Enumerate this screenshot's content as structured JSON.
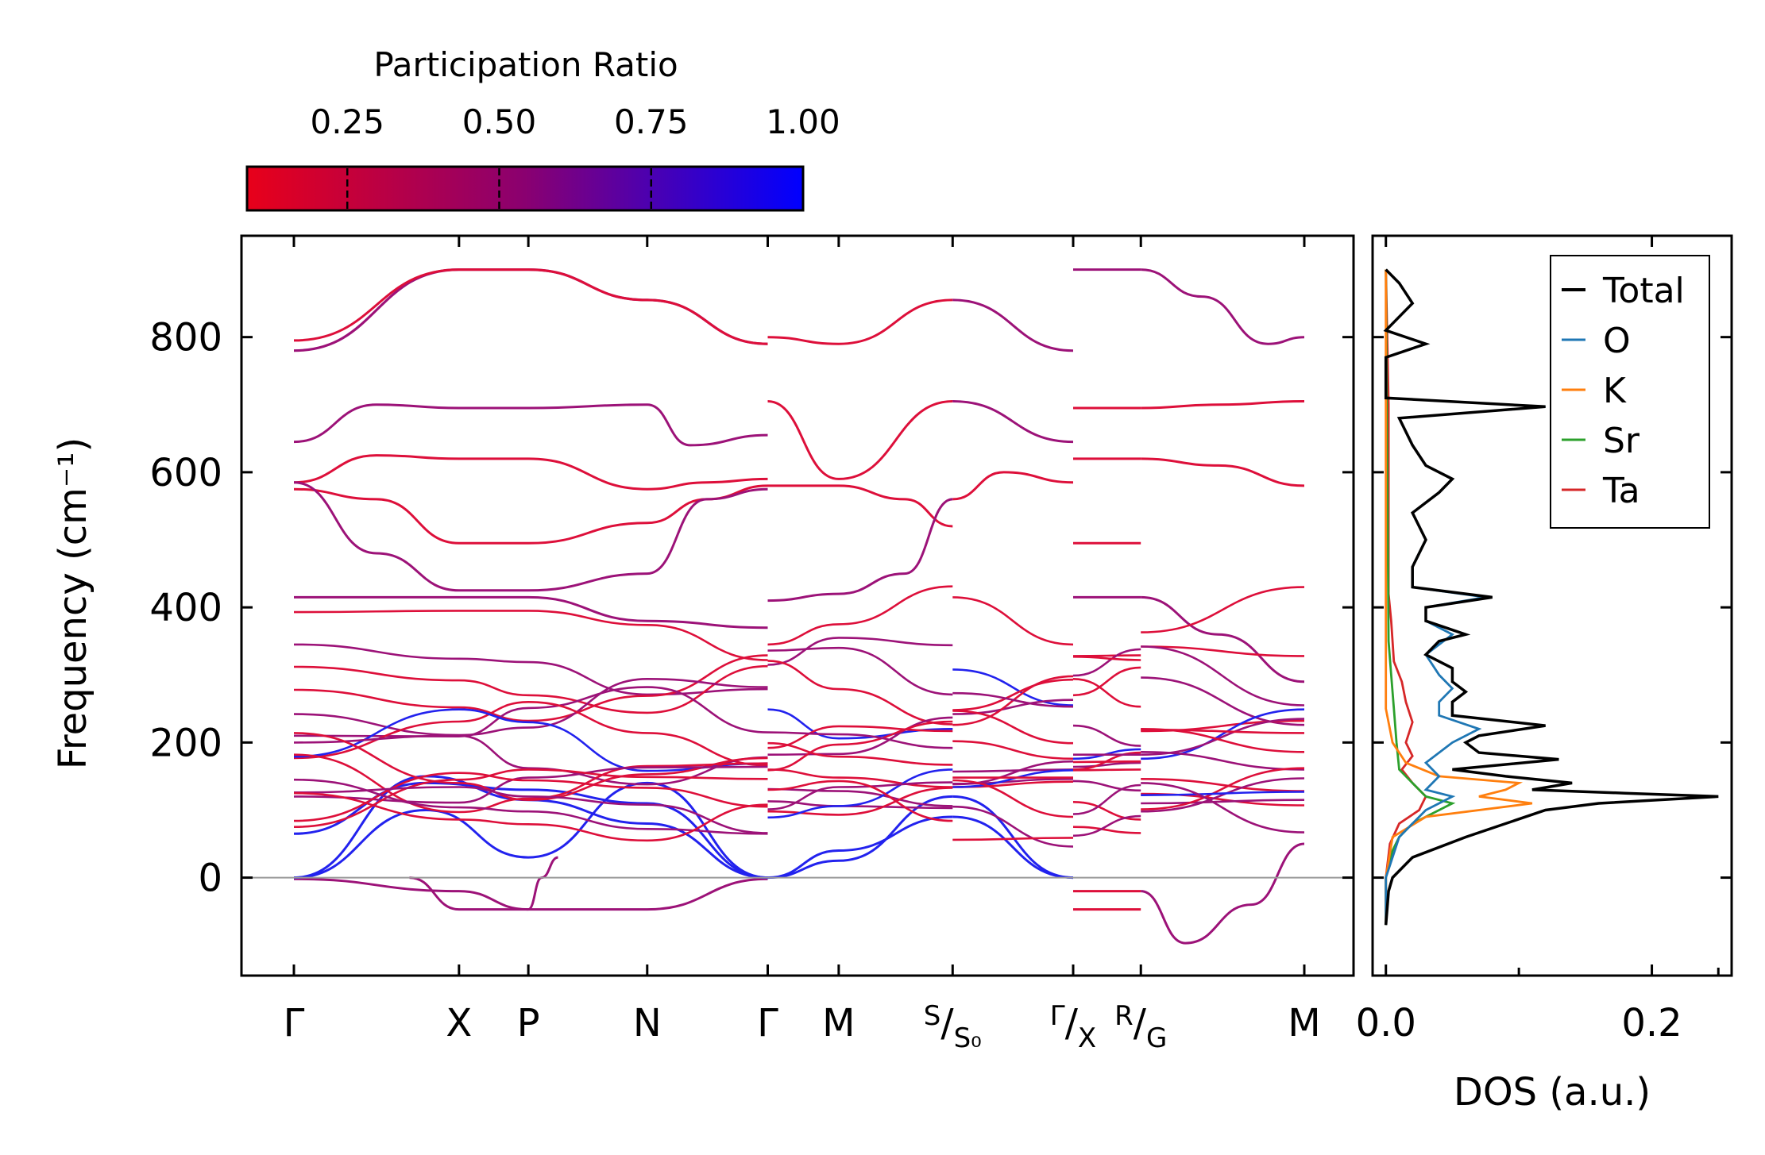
{
  "chart_data": [
    {
      "type": "line",
      "title": "",
      "ylabel": "Frequency (cm⁻¹)",
      "xlabel": "",
      "ylim": [
        -145,
        950
      ],
      "yticks": [
        0,
        200,
        400,
        600,
        800
      ],
      "x_ticks": [
        {
          "label": "Γ",
          "k": 0.0
        },
        {
          "label": "X",
          "k": 1.0
        },
        {
          "label": "P",
          "k": 1.42
        },
        {
          "label": "N",
          "k": 2.14
        },
        {
          "label": "Γ",
          "k": 2.87
        },
        {
          "label": "M",
          "k": 3.3
        },
        {
          "label": "S/S₀",
          "k": 3.99
        },
        {
          "label": "Γ/X",
          "k": 4.72
        },
        {
          "label": "R/G",
          "k": 5.13
        },
        {
          "label": "M",
          "k": 6.12
        }
      ],
      "segments": [
        {
          "path": "Γ-X-P-N-Γ",
          "k_range": [
            0.0,
            2.87
          ]
        },
        {
          "path": "Γ-M-S",
          "k_range": [
            2.87,
            3.99
          ]
        },
        {
          "path": "S₀-Γ",
          "k_range": [
            3.99,
            4.72
          ]
        },
        {
          "path": "X-R",
          "k_range": [
            4.72,
            5.13
          ]
        },
        {
          "path": "G-M",
          "k_range": [
            5.13,
            6.12
          ]
        }
      ],
      "color_encoding": "participation ratio",
      "imaginary_modes_min": -97,
      "notable_bands": [
        {
          "name": "highest optical branch",
          "values_cm-1": [
            780,
            900,
            900,
            855,
            790,
            800,
            855,
            780
          ]
        },
        {
          "name": "upper optical group",
          "values_cm-1": [
            585,
            700,
            620,
            495,
            575
          ]
        },
        {
          "name": "soft mode near X",
          "values_cm-1": [
            -47,
            -47
          ]
        }
      ]
    },
    {
      "type": "line",
      "xlabel": "DOS (a.u.)",
      "ylabel": "",
      "xlim": [
        -0.01,
        0.26
      ],
      "xticks": [
        0.0,
        0.2
      ],
      "ylim": [
        -145,
        950
      ],
      "legend_position": "top-right",
      "series": [
        {
          "name": "Total",
          "color": "#000000",
          "freq": [
            -70,
            -20,
            0,
            30,
            60,
            80,
            100,
            110,
            120,
            125,
            130,
            140,
            150,
            160,
            175,
            185,
            200,
            210,
            225,
            240,
            260,
            275,
            290,
            310,
            330,
            350,
            360,
            380,
            400,
            415,
            430,
            460,
            500,
            540,
            570,
            590,
            610,
            640,
            680,
            697,
            710,
            740,
            770,
            790,
            810,
            850,
            880,
            900
          ],
          "dos": [
            0.0,
            0.002,
            0.005,
            0.02,
            0.06,
            0.09,
            0.12,
            0.16,
            0.25,
            0.18,
            0.11,
            0.14,
            0.09,
            0.05,
            0.13,
            0.07,
            0.06,
            0.07,
            0.12,
            0.05,
            0.05,
            0.06,
            0.05,
            0.05,
            0.03,
            0.04,
            0.06,
            0.03,
            0.03,
            0.08,
            0.02,
            0.02,
            0.03,
            0.02,
            0.04,
            0.05,
            0.03,
            0.02,
            0.01,
            0.12,
            0.0,
            0.0,
            0.0,
            0.03,
            0.0,
            0.02,
            0.01,
            0.0
          ]
        },
        {
          "name": "O",
          "color": "#1f77b4",
          "freq": [
            -70,
            0,
            30,
            60,
            80,
            100,
            110,
            120,
            130,
            150,
            170,
            200,
            220,
            240,
            260,
            280,
            300,
            330,
            360,
            380,
            400,
            415,
            430,
            460,
            500,
            540,
            570,
            590,
            610,
            640,
            680,
            697,
            710,
            740,
            770,
            790,
            810,
            850,
            880,
            900
          ],
          "dos": [
            0.0,
            0.0,
            0.005,
            0.01,
            0.02,
            0.03,
            0.04,
            0.05,
            0.03,
            0.04,
            0.03,
            0.05,
            0.07,
            0.04,
            0.04,
            0.05,
            0.04,
            0.03,
            0.05,
            0.03,
            0.03,
            0.075,
            0.02,
            0.02,
            0.03,
            0.02,
            0.04,
            0.05,
            0.03,
            0.02,
            0.01,
            0.12,
            0.0,
            0.0,
            0.0,
            0.03,
            0.0,
            0.02,
            0.01,
            0.0
          ]
        },
        {
          "name": "K",
          "color": "#ff7f0e",
          "freq": [
            -70,
            0,
            60,
            90,
            110,
            120,
            130,
            140,
            150,
            170,
            200,
            250,
            900
          ],
          "dos": [
            0.0,
            0.0,
            0.005,
            0.03,
            0.11,
            0.07,
            0.09,
            0.1,
            0.04,
            0.015,
            0.005,
            0.0,
            0.0
          ]
        },
        {
          "name": "Sr",
          "color": "#2ca02c",
          "freq": [
            -70,
            0,
            40,
            60,
            80,
            100,
            110,
            120,
            140,
            160,
            200,
            250,
            300,
            350,
            900
          ],
          "dos": [
            0.0,
            0.0,
            0.005,
            0.01,
            0.02,
            0.04,
            0.05,
            0.03,
            0.02,
            0.01,
            0.008,
            0.006,
            0.004,
            0.002,
            0.0
          ]
        },
        {
          "name": "Ta",
          "color": "#d62728",
          "freq": [
            -70,
            0,
            50,
            80,
            100,
            120,
            140,
            160,
            180,
            200,
            230,
            260,
            290,
            320,
            380,
            420,
            500,
            600,
            700,
            900
          ],
          "dos": [
            0.0,
            0.0,
            0.003,
            0.01,
            0.025,
            0.03,
            0.02,
            0.012,
            0.02,
            0.015,
            0.02,
            0.015,
            0.012,
            0.006,
            0.004,
            0.002,
            0.002,
            0.002,
            0.002,
            0.0
          ]
        }
      ]
    }
  ],
  "colorbar": {
    "title": "Participation Ratio",
    "ticks": [
      "0.25",
      "0.50",
      "0.75",
      "1.00"
    ],
    "tick_values": [
      0.25,
      0.5,
      0.75,
      1.0
    ],
    "range": [
      0.085,
      1.0
    ],
    "color_low": "#e8001a",
    "color_mid": "#8a0070",
    "color_high": "#0000ff"
  },
  "band_colors": {
    "red": "#dd0f3a",
    "purple": "#9c1278",
    "blue": "#2222ee"
  },
  "y_tick_labels": [
    "0",
    "200",
    "400",
    "600",
    "800"
  ],
  "dos_tick_labels": [
    "0.0",
    "0.2"
  ]
}
